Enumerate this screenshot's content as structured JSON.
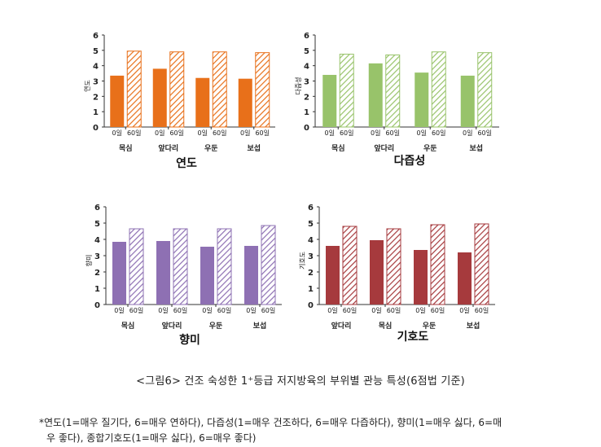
{
  "chart_data": [
    {
      "type": "bar",
      "title": "연도",
      "ylabel": "연도",
      "ylim": [
        0,
        6
      ],
      "yticks": [
        "0",
        "1",
        "2",
        "3",
        "4",
        "5",
        "6"
      ],
      "categories": [
        "목심",
        "앞다리",
        "우둔",
        "보섭"
      ],
      "bar_labels": [
        "0일",
        "60일"
      ],
      "series": [
        {
          "values": [
            3.35,
            3.8,
            3.2,
            3.15
          ]
        },
        {
          "values": [
            4.95,
            4.9,
            4.9,
            4.85
          ]
        }
      ],
      "color": "#e8701a"
    },
    {
      "type": "bar",
      "title": "다즙성",
      "ylabel": "다즙성",
      "ylim": [
        0,
        6
      ],
      "yticks": [
        "0",
        "1",
        "2",
        "3",
        "4",
        "5",
        "6"
      ],
      "categories": [
        "목심",
        "앞다리",
        "우둔",
        "보섭"
      ],
      "bar_labels": [
        "0일",
        "60일"
      ],
      "series": [
        {
          "values": [
            3.4,
            4.15,
            3.55,
            3.35
          ]
        },
        {
          "values": [
            4.75,
            4.7,
            4.9,
            4.85
          ]
        }
      ],
      "color": "#98c36a"
    },
    {
      "type": "bar",
      "title": "향미",
      "ylabel": "향미",
      "ylim": [
        0,
        6
      ],
      "yticks": [
        "0",
        "1",
        "2",
        "3",
        "4",
        "5",
        "6"
      ],
      "categories": [
        "목심",
        "앞다리",
        "우둔",
        "보섭"
      ],
      "bar_labels": [
        "0일",
        "60일"
      ],
      "series": [
        {
          "values": [
            3.85,
            3.9,
            3.55,
            3.6
          ]
        },
        {
          "values": [
            4.65,
            4.65,
            4.65,
            4.85
          ]
        }
      ],
      "color": "#8e70b3"
    },
    {
      "type": "bar",
      "title": "기호도",
      "ylabel": "기호도",
      "ylim": [
        0,
        6
      ],
      "yticks": [
        "0",
        "1",
        "2",
        "3",
        "4",
        "5",
        "6"
      ],
      "categories": [
        "앞다리",
        "목심",
        "우둔",
        "보섭"
      ],
      "bar_labels": [
        "0일",
        "60일"
      ],
      "series": [
        {
          "values": [
            3.6,
            3.95,
            3.35,
            3.2
          ]
        },
        {
          "values": [
            4.8,
            4.65,
            4.9,
            4.95
          ]
        }
      ],
      "color": "#a63a3d"
    }
  ],
  "caption": "<그림6> 건조 숙성한 1⁺등급 저지방육의 부위별 관능 특성(6점법 기준)",
  "footnote_line1": "*연도(1=매우 질기다, 6=매우 연하다), 다즙성(1=매우 건조하다, 6=매우 다즙하다), 향미(1=매우 싫다, 6=매",
  "footnote_line2": "우 좋다), 종합기호도(1=매우 싫다), 6=매우 좋다)"
}
